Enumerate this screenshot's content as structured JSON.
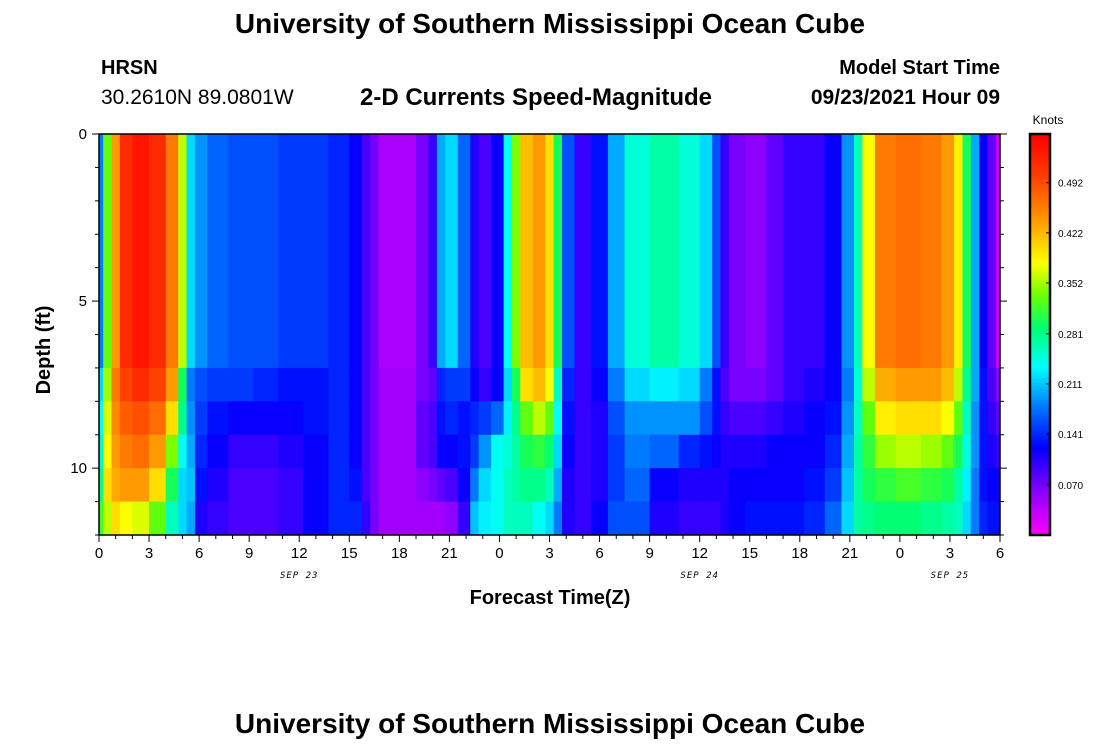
{
  "header": {
    "title": "University of Southern Mississippi Ocean Cube",
    "station": "HRSN",
    "coords": "30.2610N  89.0801W",
    "subtitle": "2-D Currents Speed-Magnitude",
    "model_start_label": "Model Start Time",
    "model_start_value": "09/23/2021 Hour 09",
    "footer_title": "University of Southern Mississippi Ocean Cube"
  },
  "colorbar": {
    "unit": "Knots",
    "ticks": [
      "0.070",
      "0.141",
      "0.211",
      "0.281",
      "0.352",
      "0.422",
      "0.492"
    ],
    "tick_values": [
      0.07,
      0.141,
      0.211,
      0.281,
      0.352,
      0.422,
      0.492
    ],
    "range": [
      0.0,
      0.56
    ]
  },
  "colors": {
    "frame": "#000000"
  },
  "chart_data": {
    "type": "heatmap",
    "title": "2-D Currents Speed-Magnitude",
    "xlabel": "Forecast Time(Z)",
    "ylabel": "Depth (ft)",
    "xlim": [
      0,
      54
    ],
    "ylim": [
      0,
      12
    ],
    "y_ticks": [
      "0",
      "5",
      "10"
    ],
    "y_tick_values": [
      0,
      5,
      10
    ],
    "x_ticks": [
      "0",
      "3",
      "6",
      "9",
      "12",
      "15",
      "18",
      "21",
      "0",
      "3",
      "6",
      "9",
      "12",
      "15",
      "18",
      "21",
      "0",
      "3",
      "6"
    ],
    "date_labels": [
      {
        "label": "SEP 23",
        "hour": 12
      },
      {
        "label": "SEP 24",
        "hour": 36
      },
      {
        "label": "SEP 25",
        "hour": 51
      }
    ],
    "depth_rows_ft": [
      7.5,
      8.5,
      9.5,
      10.5,
      11.5
    ],
    "columns": [
      {
        "hour": 0.0,
        "upper": 0.18,
        "rows": [
          0.22,
          0.24,
          0.26,
          0.28,
          0.32
        ]
      },
      {
        "hour": 0.5,
        "upper": 0.33,
        "rows": [
          0.35,
          0.37,
          0.38,
          0.4,
          0.36
        ]
      },
      {
        "hour": 1.0,
        "upper": 0.44,
        "rows": [
          0.46,
          0.45,
          0.44,
          0.43,
          0.4
        ]
      },
      {
        "hour": 1.5,
        "upper": 0.52,
        "rows": [
          0.5,
          0.48,
          0.46,
          0.44,
          0.38
        ]
      },
      {
        "hour": 2.5,
        "upper": 0.54,
        "rows": [
          0.52,
          0.49,
          0.47,
          0.44,
          0.37
        ]
      },
      {
        "hour": 3.5,
        "upper": 0.52,
        "rows": [
          0.5,
          0.47,
          0.44,
          0.4,
          0.33
        ]
      },
      {
        "hour": 4.5,
        "upper": 0.46,
        "rows": [
          0.44,
          0.4,
          0.34,
          0.3,
          0.26
        ]
      },
      {
        "hour": 5.0,
        "upper": 0.36,
        "rows": [
          0.3,
          0.28,
          0.24,
          0.22,
          0.22
        ]
      },
      {
        "hour": 5.5,
        "upper": 0.22,
        "rows": [
          0.18,
          0.19,
          0.2,
          0.21,
          0.2
        ]
      },
      {
        "hour": 6.0,
        "upper": 0.19,
        "rows": [
          0.16,
          0.15,
          0.14,
          0.13,
          0.11
        ]
      },
      {
        "hour": 7.0,
        "upper": 0.17,
        "rows": [
          0.15,
          0.13,
          0.12,
          0.11,
          0.1
        ]
      },
      {
        "hour": 8.5,
        "upper": 0.16,
        "rows": [
          0.15,
          0.12,
          0.1,
          0.09,
          0.09
        ]
      },
      {
        "hour": 10.0,
        "upper": 0.16,
        "rows": [
          0.14,
          0.12,
          0.1,
          0.09,
          0.09
        ]
      },
      {
        "hour": 11.5,
        "upper": 0.15,
        "rows": [
          0.13,
          0.12,
          0.11,
          0.1,
          0.1
        ]
      },
      {
        "hour": 13.0,
        "upper": 0.15,
        "rows": [
          0.13,
          0.13,
          0.12,
          0.12,
          0.12
        ]
      },
      {
        "hour": 14.5,
        "upper": 0.14,
        "rows": [
          0.14,
          0.14,
          0.14,
          0.14,
          0.14
        ]
      },
      {
        "hour": 15.5,
        "upper": 0.12,
        "rows": [
          0.12,
          0.12,
          0.12,
          0.13,
          0.14
        ]
      },
      {
        "hour": 16.0,
        "upper": 0.09,
        "rows": [
          0.09,
          0.09,
          0.09,
          0.09,
          0.1
        ]
      },
      {
        "hour": 16.5,
        "upper": 0.07,
        "rows": [
          0.07,
          0.07,
          0.07,
          0.07,
          0.07
        ]
      },
      {
        "hour": 17.0,
        "upper": 0.045,
        "rows": [
          0.05,
          0.05,
          0.05,
          0.05,
          0.05
        ]
      },
      {
        "hour": 18.5,
        "upper": 0.045,
        "rows": [
          0.05,
          0.05,
          0.05,
          0.05,
          0.05
        ]
      },
      {
        "hour": 19.5,
        "upper": 0.07,
        "rows": [
          0.07,
          0.08,
          0.08,
          0.06,
          0.05
        ]
      },
      {
        "hour": 20.0,
        "upper": 0.1,
        "rows": [
          0.08,
          0.09,
          0.09,
          0.07,
          0.05
        ]
      },
      {
        "hour": 20.5,
        "upper": 0.2,
        "rows": [
          0.14,
          0.13,
          0.12,
          0.08,
          0.05
        ]
      },
      {
        "hour": 21.0,
        "upper": 0.22,
        "rows": [
          0.15,
          0.14,
          0.12,
          0.09,
          0.06
        ]
      },
      {
        "hour": 22.0,
        "upper": 0.17,
        "rows": [
          0.15,
          0.13,
          0.13,
          0.12,
          0.1
        ]
      },
      {
        "hour": 22.5,
        "upper": 0.11,
        "rows": [
          0.12,
          0.14,
          0.15,
          0.18,
          0.21
        ]
      },
      {
        "hour": 23.0,
        "upper": 0.09,
        "rows": [
          0.1,
          0.15,
          0.19,
          0.22,
          0.23
        ]
      },
      {
        "hour": 24.0,
        "upper": 0.12,
        "rows": [
          0.12,
          0.17,
          0.24,
          0.24,
          0.24
        ]
      },
      {
        "hour": 24.5,
        "upper": 0.24,
        "rows": [
          0.22,
          0.23,
          0.25,
          0.26,
          0.26
        ]
      },
      {
        "hour": 25.0,
        "upper": 0.34,
        "rows": [
          0.3,
          0.28,
          0.27,
          0.27,
          0.26
        ]
      },
      {
        "hour": 25.5,
        "upper": 0.42,
        "rows": [
          0.4,
          0.33,
          0.3,
          0.28,
          0.26
        ]
      },
      {
        "hour": 26.5,
        "upper": 0.44,
        "rows": [
          0.42,
          0.36,
          0.31,
          0.28,
          0.24
        ]
      },
      {
        "hour": 27.0,
        "upper": 0.4,
        "rows": [
          0.38,
          0.33,
          0.29,
          0.26,
          0.22
        ]
      },
      {
        "hour": 27.5,
        "upper": 0.3,
        "rows": [
          0.26,
          0.24,
          0.22,
          0.2,
          0.18
        ]
      },
      {
        "hour": 28.0,
        "upper": 0.16,
        "rows": [
          0.14,
          0.13,
          0.12,
          0.11,
          0.11
        ]
      },
      {
        "hour": 29.0,
        "upper": 0.1,
        "rows": [
          0.1,
          0.1,
          0.1,
          0.1,
          0.1
        ]
      },
      {
        "hour": 30.0,
        "upper": 0.13,
        "rows": [
          0.12,
          0.11,
          0.11,
          0.11,
          0.12
        ]
      },
      {
        "hour": 31.0,
        "upper": 0.2,
        "rows": [
          0.18,
          0.16,
          0.15,
          0.15,
          0.16
        ]
      },
      {
        "hour": 32.0,
        "upper": 0.25,
        "rows": [
          0.22,
          0.19,
          0.18,
          0.17,
          0.16
        ]
      },
      {
        "hour": 34.0,
        "upper": 0.27,
        "rows": [
          0.23,
          0.19,
          0.17,
          0.12,
          0.11
        ]
      },
      {
        "hour": 35.5,
        "upper": 0.25,
        "rows": [
          0.22,
          0.19,
          0.14,
          0.11,
          0.1
        ]
      },
      {
        "hour": 36.5,
        "upper": 0.22,
        "rows": [
          0.18,
          0.16,
          0.13,
          0.11,
          0.1
        ]
      },
      {
        "hour": 37.0,
        "upper": 0.16,
        "rows": [
          0.13,
          0.13,
          0.12,
          0.11,
          0.1
        ]
      },
      {
        "hour": 37.5,
        "upper": 0.1,
        "rows": [
          0.09,
          0.1,
          0.11,
          0.11,
          0.11
        ]
      },
      {
        "hour": 38.0,
        "upper": 0.07,
        "rows": [
          0.07,
          0.09,
          0.11,
          0.12,
          0.12
        ]
      },
      {
        "hour": 39.5,
        "upper": 0.06,
        "rows": [
          0.07,
          0.09,
          0.11,
          0.12,
          0.13
        ]
      },
      {
        "hour": 40.5,
        "upper": 0.08,
        "rows": [
          0.08,
          0.1,
          0.12,
          0.12,
          0.13
        ]
      },
      {
        "hour": 41.5,
        "upper": 0.1,
        "rows": [
          0.1,
          0.11,
          0.12,
          0.12,
          0.13
        ]
      },
      {
        "hour": 43.0,
        "upper": 0.1,
        "rows": [
          0.11,
          0.12,
          0.12,
          0.13,
          0.14
        ]
      },
      {
        "hour": 44.0,
        "upper": 0.12,
        "rows": [
          0.12,
          0.13,
          0.14,
          0.15,
          0.17
        ]
      },
      {
        "hour": 45.0,
        "upper": 0.19,
        "rows": [
          0.18,
          0.19,
          0.2,
          0.21,
          0.22
        ]
      },
      {
        "hour": 45.5,
        "upper": 0.26,
        "rows": [
          0.25,
          0.26,
          0.27,
          0.27,
          0.27
        ]
      },
      {
        "hour": 46.0,
        "upper": 0.38,
        "rows": [
          0.36,
          0.33,
          0.31,
          0.3,
          0.28
        ]
      },
      {
        "hour": 47.0,
        "upper": 0.46,
        "rows": [
          0.43,
          0.39,
          0.35,
          0.31,
          0.29
        ]
      },
      {
        "hour": 48.5,
        "upper": 0.47,
        "rows": [
          0.44,
          0.4,
          0.36,
          0.32,
          0.29
        ]
      },
      {
        "hour": 50.0,
        "upper": 0.46,
        "rows": [
          0.44,
          0.4,
          0.35,
          0.31,
          0.28
        ]
      },
      {
        "hour": 51.0,
        "upper": 0.44,
        "rows": [
          0.42,
          0.38,
          0.33,
          0.3,
          0.27
        ]
      },
      {
        "hour": 51.5,
        "upper": 0.39,
        "rows": [
          0.36,
          0.33,
          0.3,
          0.27,
          0.26
        ]
      },
      {
        "hour": 52.0,
        "upper": 0.3,
        "rows": [
          0.28,
          0.26,
          0.25,
          0.23,
          0.22
        ]
      },
      {
        "hour": 52.5,
        "upper": 0.2,
        "rows": [
          0.2,
          0.19,
          0.19,
          0.18,
          0.18
        ]
      },
      {
        "hour": 53.0,
        "upper": 0.12,
        "rows": [
          0.13,
          0.13,
          0.13,
          0.13,
          0.14
        ]
      },
      {
        "hour": 53.5,
        "upper": 0.08,
        "rows": [
          0.09,
          0.1,
          0.11,
          0.12,
          0.13
        ]
      },
      {
        "hour": 54.0,
        "upper": 0.03,
        "rows": [
          0.06,
          0.08,
          0.1,
          0.12,
          0.13
        ]
      }
    ]
  }
}
